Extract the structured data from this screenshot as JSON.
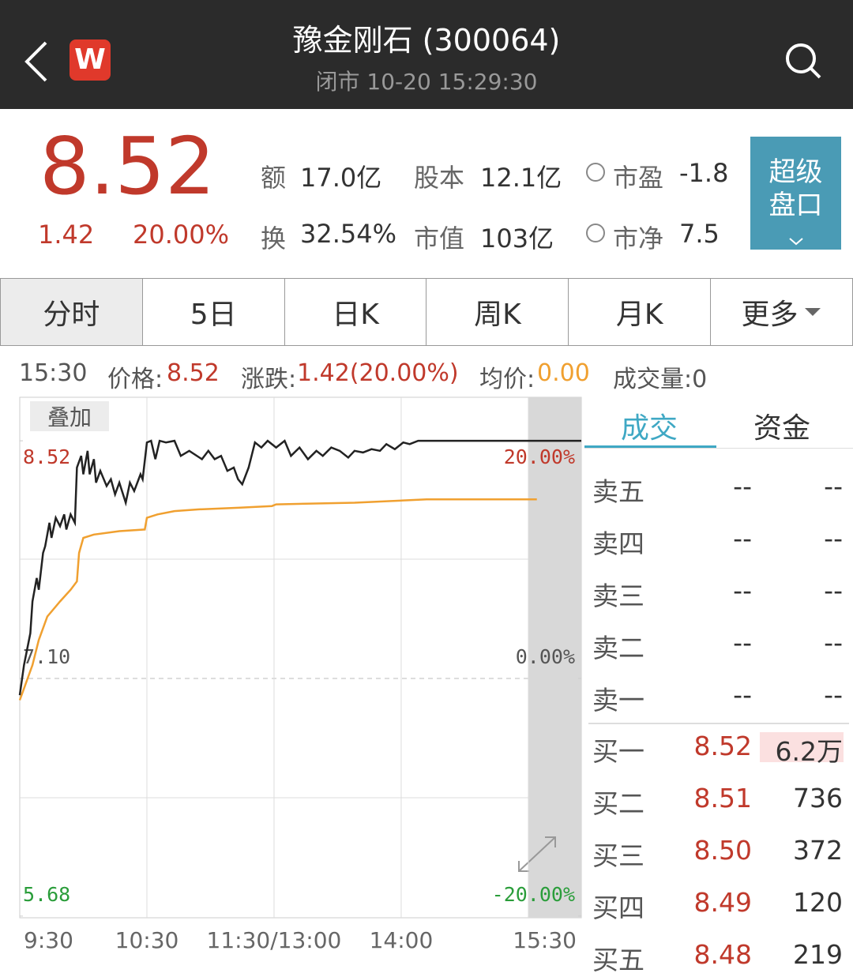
{
  "header": {
    "title": "豫金刚石 (300064)",
    "subtitle": "闭市 10-20 15:29:30",
    "app_icon": "W"
  },
  "quote": {
    "price": "8.52",
    "change": "1.42",
    "change_pct": "20.00%",
    "stats": [
      {
        "label": "额",
        "value": "17.0亿"
      },
      {
        "label": "股本",
        "value": "12.1亿"
      },
      {
        "label": "市盈",
        "value": "-1.8"
      },
      {
        "label": "换",
        "value": "32.54%"
      },
      {
        "label": "市值",
        "value": "103亿"
      },
      {
        "label": "市净",
        "value": "7.5"
      }
    ],
    "button": [
      "超级",
      "盘口"
    ]
  },
  "tabs": [
    "分时",
    "5日",
    "日K",
    "周K",
    "月K",
    "更多"
  ],
  "info_bar": {
    "time": "15:30",
    "price_label": "价格:",
    "price": "8.52",
    "change_label": "涨跌:",
    "change": "1.42(20.00%)",
    "avg_label": "均价:",
    "avg": "0.00",
    "volume": "成交量:0"
  },
  "overlay_button": "叠加",
  "chart_data": {
    "type": "line",
    "xlim": [
      0,
      265
    ],
    "xticks": [
      {
        "value": 0,
        "label": "9:30"
      },
      {
        "value": 60,
        "label": "10:30"
      },
      {
        "value": 120,
        "label": "11:30/13:00"
      },
      {
        "value": 180,
        "label": "14:00"
      },
      {
        "value": 240,
        "label": "15:30"
      }
    ],
    "ylim": [
      5.67,
      8.78
    ],
    "yticks": [
      8.52,
      {
        "value": 7.1,
        "label": "7.10"
      },
      5.68
    ],
    "y2lim": [
      -20.14,
      23.66
    ],
    "y2ticks": [
      {
        "value": 20,
        "label": "20.00%"
      },
      {
        "value": 0,
        "label": "0.00%"
      },
      {
        "value": -20,
        "label": "-20.00%"
      }
    ],
    "series": [
      {
        "name": "价格",
        "color": "#222222",
        "x": [
          0,
          2,
          5,
          6,
          8,
          9,
          11,
          12,
          14,
          15,
          17,
          19,
          21,
          22,
          24,
          26,
          27,
          29,
          30,
          32,
          33,
          35,
          36,
          38,
          41,
          43,
          45,
          47,
          50,
          52,
          54,
          57,
          58,
          60,
          62,
          64,
          66,
          69,
          73,
          76,
          80,
          86,
          89,
          92,
          95,
          98,
          101,
          103,
          105,
          108,
          111,
          114,
          117,
          121,
          125,
          128,
          132,
          136,
          140,
          143,
          147,
          151,
          155,
          158,
          162,
          166,
          170,
          173,
          177,
          181,
          184,
          188,
          265
        ],
        "values": [
          7.0,
          7.18,
          7.37,
          7.56,
          7.7,
          7.63,
          7.85,
          7.89,
          8.03,
          7.94,
          8.06,
          8.01,
          8.08,
          7.99,
          8.08,
          8.03,
          8.36,
          8.43,
          8.32,
          8.46,
          8.32,
          8.41,
          8.27,
          8.34,
          8.25,
          8.29,
          8.2,
          8.27,
          8.15,
          8.27,
          8.22,
          8.32,
          8.29,
          8.51,
          8.52,
          8.41,
          8.52,
          8.51,
          8.52,
          8.43,
          8.46,
          8.41,
          8.46,
          8.41,
          8.43,
          8.34,
          8.36,
          8.29,
          8.26,
          8.36,
          8.51,
          8.48,
          8.52,
          8.48,
          8.52,
          8.43,
          8.48,
          8.41,
          8.46,
          8.43,
          8.48,
          8.46,
          8.42,
          8.46,
          8.45,
          8.47,
          8.46,
          8.5,
          8.47,
          8.51,
          8.5,
          8.52,
          8.52
        ]
      },
      {
        "name": "均价",
        "color": "#f0a030",
        "x": [
          0,
          2,
          6,
          9,
          13,
          19,
          24,
          27,
          28,
          30,
          35,
          47,
          59,
          60,
          65,
          73,
          84,
          103,
          119,
          121,
          158,
          192,
          244
        ],
        "values": [
          6.97,
          7.04,
          7.18,
          7.33,
          7.47,
          7.56,
          7.63,
          7.68,
          7.85,
          7.94,
          7.96,
          7.98,
          7.99,
          8.06,
          8.08,
          8.1,
          8.11,
          8.12,
          8.13,
          8.14,
          8.15,
          8.17,
          8.17
        ]
      }
    ]
  },
  "order_book": {
    "tabs": [
      "成交",
      "资金"
    ],
    "rows": [
      [
        "卖五",
        "--",
        "--"
      ],
      [
        "卖四",
        "--",
        "--"
      ],
      [
        "卖三",
        "--",
        "--"
      ],
      [
        "卖二",
        "--",
        "--"
      ],
      [
        "卖一",
        "--",
        "--"
      ],
      [
        "买一",
        "8.52",
        "6.2万"
      ],
      [
        "买二",
        "8.51",
        "736"
      ],
      [
        "买三",
        "8.50",
        "372"
      ],
      [
        "买四",
        "8.49",
        "120"
      ],
      [
        "买五",
        "8.48",
        "219"
      ]
    ]
  }
}
